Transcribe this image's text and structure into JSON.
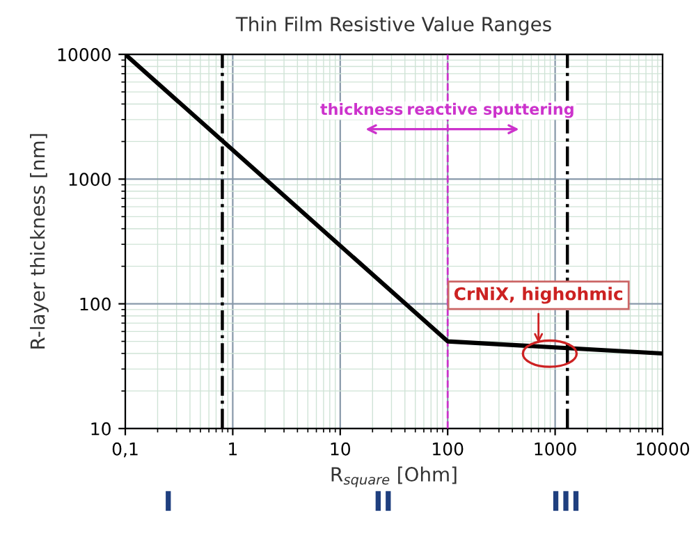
{
  "chart_data": {
    "type": "line",
    "title": "Thin Film Resistive Value Ranges",
    "xlabel": "R$_{square}$ [Ohm]",
    "ylabel": "R-layer thickness [nm]",
    "x": [
      0.1,
      100,
      10000
    ],
    "series": [
      {
        "color": "#000000",
        "values": [
          10000,
          50,
          40
        ]
      }
    ],
    "log": "xy",
    "xlim": [
      0.1,
      10000
    ],
    "ylim": [
      10,
      10000
    ],
    "xticks": [
      {
        "value": 0.1,
        "label": "0,1"
      },
      1,
      10,
      100,
      1000,
      10000
    ],
    "yticks": [
      10,
      100,
      1000,
      10000
    ],
    "grid": true,
    "marker": "none",
    "line_style": "solid",
    "ref_lines": [
      {
        "axis": "x",
        "value": 0.8,
        "color": "#000000",
        "line_style": "dashdot"
      },
      {
        "axis": "x",
        "value": 100,
        "color": "#cc33cc",
        "line_style": "dashed"
      },
      {
        "axis": "x",
        "value": 1300,
        "color": "#000000",
        "line_style": "dashdot"
      }
    ],
    "annotations": [
      "thickness",
      "reactive sputtering",
      {
        "text": "CrNiX, highohmic",
        "x": 700,
        "y": 45
      },
      "I",
      "II",
      "III"
    ]
  }
}
